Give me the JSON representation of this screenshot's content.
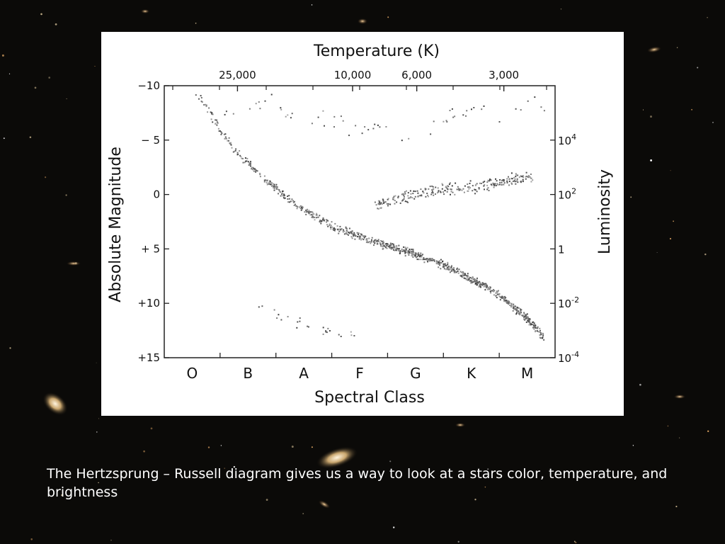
{
  "colors": {
    "background": "#0b0a08",
    "panel": "#ffffff",
    "ink": "#111111",
    "caption_text": "#ffffff"
  },
  "caption": "The Hertzsprung – Russell diagram gives us a way to look at a stars color, temperature, and brightness",
  "chart_data": {
    "type": "scatter",
    "title": "",
    "top_axis": {
      "label": "Temperature (K)",
      "ticks": [
        {
          "label": "25,000",
          "value": 25000
        },
        {
          "label": "10,000",
          "value": 10000
        },
        {
          "label": "6,000",
          "value": 6000
        },
        {
          "label": "3,000",
          "value": 3000
        }
      ]
    },
    "left_axis": {
      "label": "Absolute Magnitude",
      "range": [
        -10,
        15
      ],
      "inverted": true,
      "ticks": [
        {
          "label": "−10",
          "value": -10
        },
        {
          "label": "− 5",
          "value": -5
        },
        {
          "label": "0",
          "value": 0
        },
        {
          "label": "+ 5",
          "value": 5
        },
        {
          "label": "+10",
          "value": 10
        },
        {
          "label": "+15",
          "value": 15
        }
      ]
    },
    "right_axis": {
      "label": "Luminosity",
      "ticks": [
        {
          "base": "10",
          "exp": "4",
          "magnitude": -5
        },
        {
          "base": "10",
          "exp": "2",
          "magnitude": 0
        },
        {
          "base": "1",
          "exp": "",
          "magnitude": 5
        },
        {
          "base": "10",
          "exp": "-2",
          "magnitude": 10
        },
        {
          "base": "10",
          "exp": "-4",
          "magnitude": 15
        }
      ]
    },
    "bottom_axis": {
      "label": "Spectral Class",
      "classes": [
        "O",
        "B",
        "A",
        "F",
        "G",
        "K",
        "M"
      ]
    },
    "grid": false,
    "series": [
      {
        "group": "main-sequence",
        "x_class_index": [
          0.05,
          0.3,
          0.55,
          0.8,
          1.05,
          1.3,
          1.55,
          1.8,
          2.05,
          2.3,
          2.55,
          2.8,
          3.05,
          3.3,
          3.55,
          3.8,
          4.05,
          4.3,
          4.55,
          4.8,
          5.05,
          5.3,
          5.55,
          5.8,
          6.05,
          6.3
        ],
        "magnitude": [
          -9.7,
          -7.7,
          -5.6,
          -3.9,
          -2.6,
          -1.4,
          -0.4,
          0.7,
          1.6,
          2.3,
          3.0,
          3.5,
          4.0,
          4.4,
          4.8,
          5.2,
          5.6,
          6.1,
          6.6,
          7.2,
          7.9,
          8.6,
          9.5,
          10.5,
          11.6,
          13.2
        ],
        "spread": 0.5,
        "points": 900
      },
      {
        "group": "giants",
        "x_class_index": [
          3.3,
          3.7,
          4.1,
          4.5,
          4.9,
          5.3,
          5.7,
          6.1
        ],
        "magnitude": [
          0.9,
          0.4,
          -0.1,
          -0.4,
          -0.6,
          -0.9,
          -1.3,
          -1.6
        ],
        "spread": 0.8,
        "points": 260
      },
      {
        "group": "supergiants",
        "x_class_index": [
          0.3,
          1.0,
          2.0,
          3.0,
          4.0,
          4.5,
          5.0,
          5.5,
          6.0,
          6.4
        ],
        "magnitude": [
          -6.5,
          -8.5,
          -7.5,
          -6.0,
          -5.5,
          -7.0,
          -8.0,
          -7.5,
          -8.5,
          -7.8
        ],
        "spread": 1.5,
        "points": 60
      },
      {
        "group": "white-dwarfs",
        "x_class_index": [
          1.2,
          1.5,
          1.9,
          2.3,
          2.6,
          3.0
        ],
        "magnitude": [
          10.2,
          11.0,
          11.8,
          12.3,
          12.8,
          13.0
        ],
        "spread": 0.6,
        "points": 25
      }
    ]
  }
}
